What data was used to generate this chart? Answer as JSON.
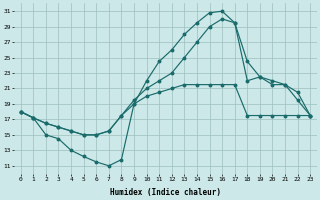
{
  "xlabel": "Humidex (Indice chaleur)",
  "bg_color": "#cce8e8",
  "line_color": "#1a6b6b",
  "grid_color": "#9dbfbf",
  "xlim": [
    -0.5,
    23.5
  ],
  "ylim": [
    10,
    32
  ],
  "xticks": [
    0,
    1,
    2,
    3,
    4,
    5,
    6,
    7,
    8,
    9,
    10,
    11,
    12,
    13,
    14,
    15,
    16,
    17,
    18,
    19,
    20,
    21,
    22,
    23
  ],
  "yticks": [
    11,
    13,
    15,
    17,
    19,
    21,
    23,
    25,
    27,
    29,
    31
  ],
  "curve1_x": [
    0,
    1,
    2,
    3,
    4,
    5,
    6,
    7,
    8,
    9,
    10,
    11,
    12,
    13,
    14,
    15,
    16,
    17,
    18,
    19,
    20,
    21,
    22,
    23
  ],
  "curve1_y": [
    18.0,
    17.2,
    15.0,
    14.5,
    13.0,
    12.2,
    11.5,
    11.0,
    11.8,
    19.0,
    22.0,
    24.5,
    26.0,
    28.0,
    29.5,
    30.8,
    31.0,
    29.5,
    24.5,
    22.5,
    21.5,
    21.5,
    19.5,
    17.5
  ],
  "curve2_x": [
    0,
    1,
    2,
    3,
    4,
    5,
    6,
    7,
    8,
    9,
    10,
    11,
    12,
    13,
    14,
    15,
    16,
    17,
    18,
    19,
    20,
    21,
    22,
    23
  ],
  "curve2_y": [
    18.0,
    17.2,
    16.5,
    16.0,
    15.5,
    15.0,
    15.0,
    15.5,
    17.5,
    19.5,
    21.0,
    22.0,
    23.0,
    25.0,
    27.0,
    29.0,
    30.0,
    29.5,
    22.0,
    22.5,
    22.0,
    21.5,
    20.5,
    17.5
  ],
  "curve3_x": [
    0,
    1,
    2,
    3,
    4,
    5,
    6,
    7,
    8,
    9,
    10,
    11,
    12,
    13,
    14,
    15,
    16,
    17,
    18,
    19,
    20,
    21,
    22,
    23
  ],
  "curve3_y": [
    18.0,
    17.2,
    16.5,
    16.0,
    15.5,
    15.0,
    15.0,
    15.5,
    17.5,
    19.0,
    20.0,
    20.5,
    21.0,
    21.5,
    21.5,
    21.5,
    21.5,
    21.5,
    17.5,
    17.5,
    17.5,
    17.5,
    17.5,
    17.5
  ]
}
